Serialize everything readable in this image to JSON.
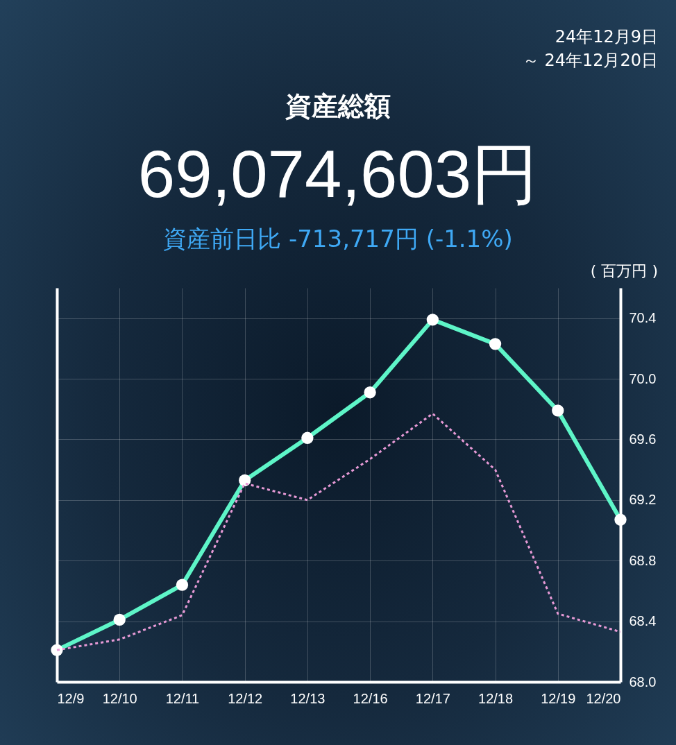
{
  "chart_data": {
    "type": "line",
    "title": "資産総額",
    "subtitle": "69,074,603円",
    "annotations": [
      "24年12月9日",
      "～ 24年12月20日",
      "資産前日比 -713,717円 (-1.1%)"
    ],
    "ylabel": "( 百万円 )",
    "categories": [
      "12/9",
      "12/10",
      "12/11",
      "12/12",
      "12/13",
      "12/16",
      "12/17",
      "12/18",
      "12/19",
      "12/20"
    ],
    "series": [
      {
        "color": "#5ef5c8",
        "marker": "circle",
        "line_style": "solid",
        "values": [
          68.21,
          68.41,
          68.64,
          69.33,
          69.61,
          69.91,
          70.39,
          70.23,
          69.79,
          69.07
        ]
      },
      {
        "color": "#e79ad6",
        "marker": "none",
        "line_style": "dotted",
        "values": [
          68.21,
          68.28,
          68.44,
          69.31,
          69.2,
          69.47,
          69.77,
          69.4,
          68.45,
          68.33
        ]
      }
    ],
    "ylim": [
      68.0,
      70.6
    ],
    "yticks": [
      {
        "value": 68,
        "label": "68.0"
      },
      {
        "value": 68.4,
        "label": "68.4"
      },
      {
        "value": 68.8,
        "label": "68.8"
      },
      {
        "value": 69.2,
        "label": "69.2"
      },
      {
        "value": 69.6,
        "label": "69.6"
      },
      {
        "value": 70,
        "label": "70.0"
      },
      {
        "value": 70.4,
        "label": "70.4"
      }
    ],
    "grid": true
  }
}
